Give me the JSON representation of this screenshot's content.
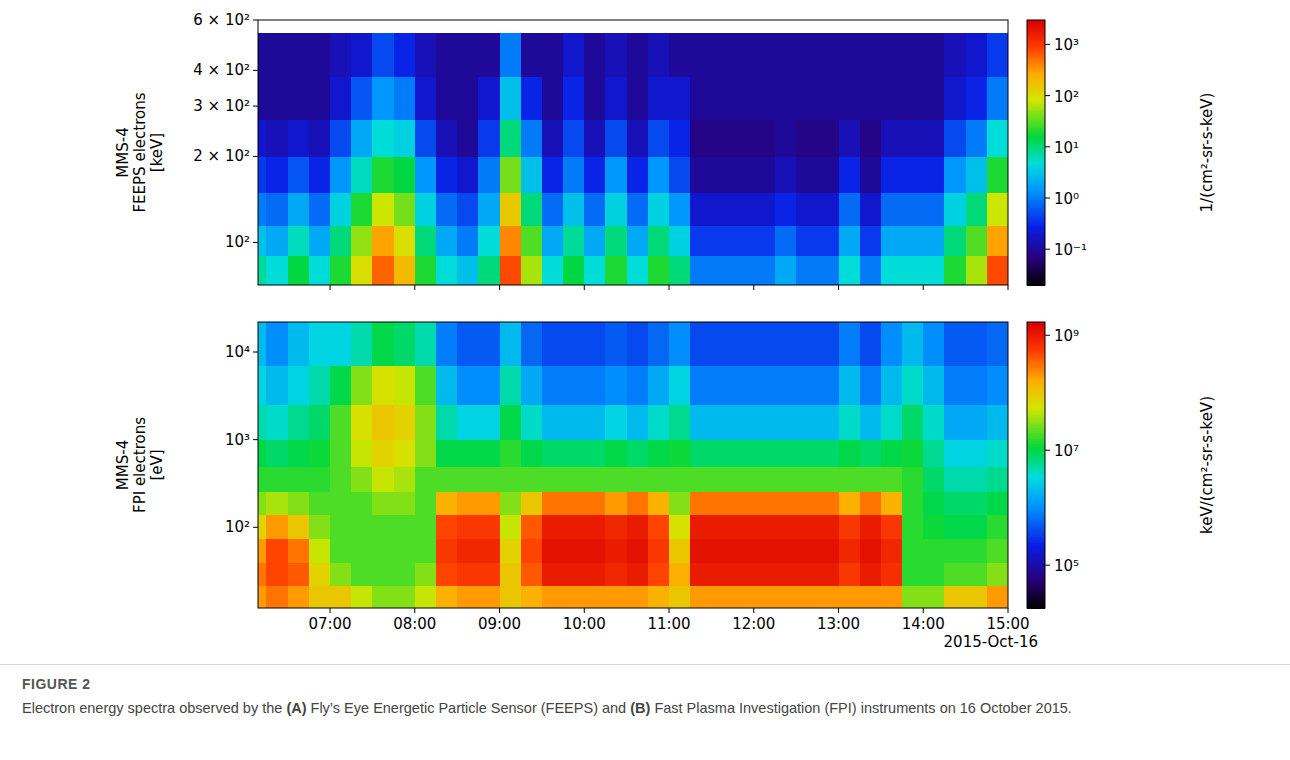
{
  "chart_data": [
    {
      "type": "heatmap",
      "ylabel": [
        "MMS-4",
        "FEEPS electrons",
        "[keV]"
      ],
      "xlim": [
        6.15,
        15.0
      ],
      "xticks": [
        7,
        8,
        9,
        10,
        11,
        12,
        13,
        14,
        15
      ],
      "ylim": [
        71,
        600
      ],
      "yticks": [
        {
          "value": 100,
          "label": "10²"
        },
        {
          "value": 200,
          "label": "2 × 10²"
        },
        {
          "value": 300,
          "label": "3 × 10²"
        },
        {
          "value": 400,
          "label": "4 × 10²"
        },
        {
          "value": 600,
          "label": "6 × 10²"
        }
      ],
      "log": "y",
      "tick_labels": "y",
      "x_edges": [
        6.0,
        6.25,
        6.5,
        6.75,
        7.0,
        7.25,
        7.5,
        7.75,
        8.0,
        8.25,
        8.5,
        8.75,
        9.0,
        9.25,
        9.5,
        9.75,
        10.0,
        10.25,
        10.5,
        10.75,
        11.0,
        11.25,
        11.5,
        11.75,
        12.0,
        12.25,
        12.5,
        12.75,
        13.0,
        13.25,
        13.5,
        13.75,
        14.0,
        14.25,
        14.5,
        14.75,
        15.0
      ],
      "y_edges": [
        71,
        90,
        115,
        150,
        200,
        270,
        380,
        540
      ],
      "cells": [
        [
          8,
          5,
          15,
          5,
          20,
          100,
          600,
          200,
          20,
          5,
          3,
          10,
          800,
          60,
          5,
          15,
          5,
          20,
          5,
          20,
          10,
          1,
          1,
          1,
          1,
          2,
          1,
          1,
          5,
          1,
          5,
          5,
          5,
          20,
          60,
          800
        ],
        [
          3,
          2,
          6,
          2,
          10,
          50,
          300,
          100,
          10,
          2,
          1,
          5,
          400,
          30,
          2,
          8,
          2,
          10,
          2,
          10,
          4,
          0.4,
          0.4,
          0.4,
          0.4,
          0.8,
          0.4,
          0.4,
          2,
          0.4,
          2,
          2,
          2,
          10,
          30,
          300
        ],
        [
          1,
          0.8,
          2,
          0.8,
          4,
          20,
          80,
          40,
          4,
          0.8,
          0.5,
          2,
          150,
          10,
          0.8,
          3,
          0.8,
          4,
          0.8,
          4,
          1.5,
          0.2,
          0.2,
          0.2,
          0.2,
          0.3,
          0.2,
          0.2,
          0.8,
          0.2,
          0.8,
          0.8,
          0.8,
          4,
          10,
          80
        ],
        [
          0.4,
          0.3,
          0.6,
          0.3,
          1.5,
          6,
          20,
          15,
          1.5,
          0.3,
          0.2,
          1,
          40,
          3,
          0.3,
          1,
          0.3,
          1.5,
          0.3,
          1.5,
          0.5,
          0.1,
          0.1,
          0.1,
          0.1,
          0.15,
          0.1,
          0.1,
          0.3,
          0.1,
          0.3,
          0.3,
          0.3,
          1.5,
          3,
          20
        ],
        [
          0.2,
          0.15,
          0.2,
          0.15,
          0.5,
          2,
          5,
          4,
          0.5,
          0.15,
          0.1,
          0.4,
          10,
          1,
          0.15,
          0.5,
          0.15,
          0.5,
          0.15,
          0.5,
          0.3,
          0.08,
          0.08,
          0.08,
          0.08,
          0.1,
          0.08,
          0.08,
          0.15,
          0.08,
          0.15,
          0.15,
          0.15,
          0.5,
          1,
          5
        ],
        [
          0.1,
          0.1,
          0.1,
          0.1,
          0.2,
          0.6,
          1.5,
          1,
          0.2,
          0.1,
          0.1,
          0.2,
          3,
          0.3,
          0.1,
          0.3,
          0.1,
          0.2,
          0.1,
          0.2,
          0.2,
          0.1,
          0.1,
          0.1,
          0.1,
          0.1,
          0.1,
          0.1,
          0.1,
          0.1,
          0.1,
          0.1,
          0.1,
          0.2,
          0.3,
          1
        ],
        [
          0.1,
          0.1,
          0.1,
          0.1,
          0.15,
          0.2,
          0.5,
          0.3,
          0.15,
          0.1,
          0.1,
          0.1,
          1,
          0.1,
          0.1,
          0.2,
          0.1,
          0.15,
          0.1,
          0.15,
          0.1,
          0.1,
          0.1,
          0.1,
          0.1,
          0.1,
          0.1,
          0.1,
          0.1,
          0.1,
          0.1,
          0.1,
          0.1,
          0.15,
          0.2,
          0.4
        ]
      ],
      "colorbar": {
        "label": "1/(cm²-sr-s-keV)",
        "log": true,
        "lim": [
          0.02,
          3000
        ],
        "ticks": [
          {
            "value": 0.1,
            "label": "10⁻¹"
          },
          {
            "value": 1,
            "label": "10⁰"
          },
          {
            "value": 10,
            "label": "10¹"
          },
          {
            "value": 100,
            "label": "10²"
          },
          {
            "value": 1000,
            "label": "10³"
          }
        ]
      }
    },
    {
      "type": "heatmap",
      "ylabel": [
        "MMS-4",
        "FPI electrons",
        "[eV]"
      ],
      "xlabel": "2015-Oct-16",
      "xlim": [
        6.15,
        15.0
      ],
      "xticks": [
        {
          "value": 7,
          "label": "07:00"
        },
        {
          "value": 8,
          "label": "08:00"
        },
        {
          "value": 9,
          "label": "09:00"
        },
        {
          "value": 10,
          "label": "10:00"
        },
        {
          "value": 11,
          "label": "11:00"
        },
        {
          "value": 12,
          "label": "12:00"
        },
        {
          "value": 13,
          "label": "13:00"
        },
        {
          "value": 14,
          "label": "14:00"
        },
        {
          "value": 15,
          "label": "15:00"
        }
      ],
      "ylim": [
        12,
        22000
      ],
      "yticks": [
        {
          "value": 100,
          "label": "10²"
        },
        {
          "value": 1000,
          "label": "10³"
        },
        {
          "value": 10000,
          "label": "10⁴"
        }
      ],
      "log": "y",
      "tick_labels": true,
      "x_edges": [
        6.0,
        6.25,
        6.5,
        6.75,
        7.0,
        7.25,
        7.5,
        7.75,
        8.0,
        8.25,
        8.5,
        8.75,
        9.0,
        9.25,
        9.5,
        9.75,
        10.0,
        10.25,
        10.5,
        10.75,
        11.0,
        11.25,
        11.5,
        11.75,
        12.0,
        12.25,
        12.5,
        12.75,
        13.0,
        13.25,
        13.5,
        13.75,
        14.0,
        14.25,
        14.5,
        14.75,
        15.0
      ],
      "y_edges": [
        12,
        22,
        40,
        75,
        140,
        260,
        500,
        1000,
        2500,
        7000,
        22000
      ],
      "cells": [
        [
          200000000.0,
          300000000.0,
          200000000.0,
          100000000.0,
          100000000.0,
          50000000.0,
          30000000.0,
          30000000.0,
          50000000.0,
          150000000.0,
          200000000.0,
          200000000.0,
          100000000.0,
          150000000.0,
          200000000.0,
          200000000.0,
          200000000.0,
          200000000.0,
          200000000.0,
          150000000.0,
          100000000.0,
          200000000.0,
          200000000.0,
          200000000.0,
          200000000.0,
          200000000.0,
          200000000.0,
          200000000.0,
          200000000.0,
          200000000.0,
          200000000.0,
          30000000.0,
          30000000.0,
          100000000.0,
          100000000.0,
          200000000.0
        ],
        [
          300000000.0,
          500000000.0,
          400000000.0,
          80000000.0,
          30000000.0,
          20000000.0,
          20000000.0,
          20000000.0,
          30000000.0,
          500000000.0,
          600000000.0,
          600000000.0,
          100000000.0,
          400000000.0,
          1000000000.0,
          1000000000.0,
          1000000000.0,
          800000000.0,
          1000000000.0,
          500000000.0,
          150000000.0,
          1000000000.0,
          1000000000.0,
          1000000000.0,
          1000000000.0,
          1000000000.0,
          1000000000.0,
          1000000000.0,
          600000000.0,
          1000000000.0,
          700000000.0,
          15000000.0,
          15000000.0,
          20000000.0,
          20000000.0,
          30000000.0
        ],
        [
          200000000.0,
          500000000.0,
          300000000.0,
          50000000.0,
          20000000.0,
          20000000.0,
          20000000.0,
          20000000.0,
          20000000.0,
          600000000.0,
          800000000.0,
          800000000.0,
          80000000.0,
          500000000.0,
          1200000000.0,
          1200000000.0,
          1200000000.0,
          1000000000.0,
          1200000000.0,
          600000000.0,
          100000000.0,
          1200000000.0,
          1200000000.0,
          1200000000.0,
          1200000000.0,
          1200000000.0,
          1200000000.0,
          1200000000.0,
          800000000.0,
          1200000000.0,
          800000000.0,
          15000000.0,
          15000000.0,
          15000000.0,
          15000000.0,
          20000000.0
        ],
        [
          80000000.0,
          200000000.0,
          100000000.0,
          30000000.0,
          20000000.0,
          20000000.0,
          20000000.0,
          20000000.0,
          20000000.0,
          500000000.0,
          600000000.0,
          600000000.0,
          50000000.0,
          400000000.0,
          1000000000.0,
          1000000000.0,
          1000000000.0,
          800000000.0,
          1000000000.0,
          500000000.0,
          60000000.0,
          1000000000.0,
          1000000000.0,
          1000000000.0,
          1000000000.0,
          1000000000.0,
          1000000000.0,
          1000000000.0,
          600000000.0,
          1000000000.0,
          600000000.0,
          15000000.0,
          12000000.0,
          10000000.0,
          10000000.0,
          15000000.0
        ],
        [
          30000000.0,
          40000000.0,
          30000000.0,
          20000000.0,
          20000000.0,
          20000000.0,
          30000000.0,
          30000000.0,
          20000000.0,
          150000000.0,
          200000000.0,
          200000000.0,
          30000000.0,
          100000000.0,
          300000000.0,
          300000000.0,
          300000000.0,
          200000000.0,
          300000000.0,
          150000000.0,
          30000000.0,
          300000000.0,
          300000000.0,
          300000000.0,
          300000000.0,
          300000000.0,
          300000000.0,
          300000000.0,
          150000000.0,
          300000000.0,
          150000000.0,
          15000000.0,
          10000000.0,
          8000000.0,
          8000000.0,
          10000000.0
        ],
        [
          15000000.0,
          15000000.0,
          15000000.0,
          15000000.0,
          20000000.0,
          30000000.0,
          50000000.0,
          40000000.0,
          20000000.0,
          20000000.0,
          20000000.0,
          20000000.0,
          20000000.0,
          20000000.0,
          20000000.0,
          20000000.0,
          20000000.0,
          20000000.0,
          20000000.0,
          20000000.0,
          20000000.0,
          20000000.0,
          20000000.0,
          20000000.0,
          20000000.0,
          20000000.0,
          20000000.0,
          20000000.0,
          20000000.0,
          20000000.0,
          20000000.0,
          15000000.0,
          8000000.0,
          5000000.0,
          5000000.0,
          6000000.0
        ],
        [
          10000000.0,
          8000000.0,
          10000000.0,
          12000000.0,
          20000000.0,
          50000000.0,
          80000000.0,
          60000000.0,
          30000000.0,
          10000000.0,
          10000000.0,
          10000000.0,
          15000000.0,
          10000000.0,
          8000000.0,
          8000000.0,
          8000000.0,
          10000000.0,
          8000000.0,
          10000000.0,
          12000000.0,
          8000000.0,
          8000000.0,
          8000000.0,
          8000000.0,
          8000000.0,
          8000000.0,
          8000000.0,
          10000000.0,
          8000000.0,
          10000000.0,
          12000000.0,
          6000000.0,
          3000000.0,
          3000000.0,
          4000000.0
        ],
        [
          5000000.0,
          4000000.0,
          6000000.0,
          8000000.0,
          20000000.0,
          60000000.0,
          100000000.0,
          80000000.0,
          30000000.0,
          5000000.0,
          3000000.0,
          3000000.0,
          10000000.0,
          4000000.0,
          2000000.0,
          2000000.0,
          2000000.0,
          3000000.0,
          2000000.0,
          4000000.0,
          6000000.0,
          2000000.0,
          2000000.0,
          2000000.0,
          2000000.0,
          2000000.0,
          2000000.0,
          2000000.0,
          4000000.0,
          2000000.0,
          4000000.0,
          8000000.0,
          4000000.0,
          1500000.0,
          1500000.0,
          2000000.0
        ],
        [
          3000000.0,
          2000000.0,
          3000000.0,
          5000000.0,
          10000000.0,
          30000000.0,
          60000000.0,
          50000000.0,
          20000000.0,
          2000000.0,
          1000000.0,
          1000000.0,
          5000000.0,
          1500000.0,
          800000.0,
          800000.0,
          800000.0,
          1000000.0,
          800000.0,
          1500000.0,
          3000000.0,
          800000.0,
          800000.0,
          800000.0,
          800000.0,
          800000.0,
          800000.0,
          800000.0,
          2000000.0,
          800000.0,
          2000000.0,
          4000000.0,
          2000000.0,
          800000.0,
          800000.0,
          1000000.0
        ],
        [
          2000000.0,
          1000000.0,
          2000000.0,
          3000000.0,
          3000000.0,
          5000000.0,
          10000000.0,
          8000000.0,
          5000000.0,
          800000.0,
          500000.0,
          500000.0,
          2000000.0,
          600000.0,
          400000.0,
          400000.0,
          400000.0,
          500000.0,
          400000.0,
          600000.0,
          1000000.0,
          400000.0,
          400000.0,
          400000.0,
          400000.0,
          400000.0,
          400000.0,
          400000.0,
          800000.0,
          400000.0,
          1000000.0,
          2000000.0,
          1000000.0,
          500000.0,
          500000.0,
          600000.0
        ]
      ],
      "colorbar": {
        "label": "keV/(cm²-sr-s-keV)",
        "log": true,
        "lim": [
          18000,
          1700000000
        ],
        "ticks": [
          {
            "value": 100000,
            "label": "10⁵"
          },
          {
            "value": 10000000,
            "label": "10⁷"
          },
          {
            "value": 1000000000,
            "label": "10⁹"
          }
        ]
      }
    }
  ],
  "figure": {
    "label": "FIGURE 2",
    "caption": "Electron energy spectra observed by the (A) Fly’s Eye Energetic Particle Sensor (FEEPS) and (B) Fast Plasma Investigation (FPI) instruments on 16 October 2015."
  }
}
